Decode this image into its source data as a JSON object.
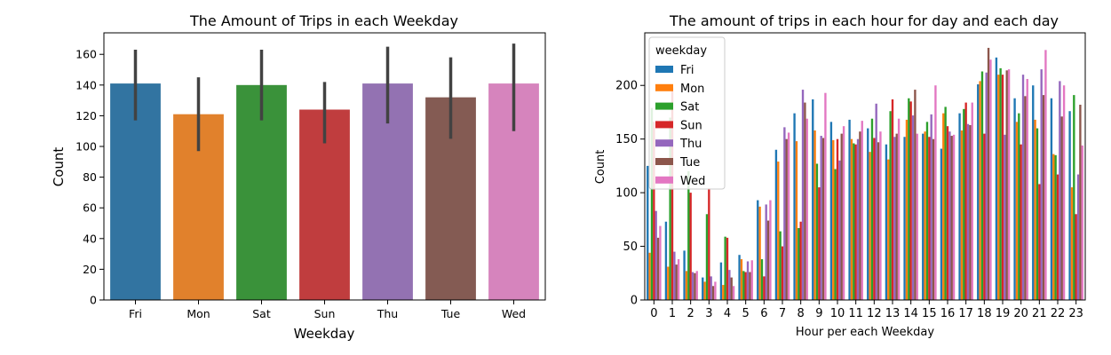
{
  "chart_data": [
    {
      "type": "bar",
      "title": "The Amount of Trips in each Weekday",
      "xlabel": "Weekday",
      "ylabel": "Count",
      "ylim": [
        0,
        174
      ],
      "yticks": [
        0,
        20,
        40,
        60,
        80,
        100,
        120,
        140,
        160
      ],
      "categories": [
        "Fri",
        "Mon",
        "Sat",
        "Sun",
        "Thu",
        "Tue",
        "Wed"
      ],
      "values": [
        141,
        121,
        140,
        124,
        141,
        132,
        141
      ],
      "error_low": [
        117,
        97,
        117,
        102,
        115,
        105,
        110
      ],
      "error_high": [
        163,
        145,
        163,
        142,
        165,
        158,
        167
      ],
      "colors": [
        "#3274a1",
        "#e1812c",
        "#3a923a",
        "#c03d3e",
        "#9372b2",
        "#845b53",
        "#d684bd"
      ],
      "error_color": "#424242"
    },
    {
      "type": "bar",
      "title": "The amount of trips in each hour for day and each day",
      "xlabel": "Hour per each Weekday",
      "ylabel": "Count",
      "ylim": [
        0,
        249
      ],
      "yticks": [
        0,
        50,
        100,
        150,
        200
      ],
      "categories": [
        "0",
        "1",
        "2",
        "3",
        "4",
        "5",
        "6",
        "7",
        "8",
        "9",
        "10",
        "11",
        "12",
        "13",
        "14",
        "15",
        "16",
        "17",
        "18",
        "19",
        "20",
        "21",
        "22",
        "23"
      ],
      "legend": {
        "title": "weekday",
        "placement": "top-left"
      },
      "series": [
        {
          "name": "Fri",
          "color": "#1f77b4",
          "values": [
            125,
            73,
            46,
            21,
            35,
            42,
            93,
            140,
            174,
            187,
            166,
            168,
            160,
            145,
            152,
            155,
            141,
            174,
            201,
            226,
            188,
            200,
            188,
            176
          ]
        },
        {
          "name": "Mon",
          "color": "#ff7f0e",
          "values": [
            44,
            31,
            27,
            17,
            14,
            38,
            87,
            129,
            148,
            158,
            149,
            150,
            138,
            131,
            168,
            157,
            174,
            158,
            204,
            210,
            166,
            168,
            136,
            105
          ]
        },
        {
          "name": "Sat",
          "color": "#2ca02c",
          "values": [
            179,
            170,
            120,
            80,
            59,
            27,
            38,
            64,
            67,
            127,
            122,
            146,
            169,
            176,
            188,
            166,
            180,
            178,
            213,
            216,
            174,
            160,
            135,
            191
          ]
        },
        {
          "name": "Sun",
          "color": "#d62728",
          "values": [
            166,
            198,
            100,
            104,
            58,
            26,
            22,
            50,
            73,
            105,
            150,
            145,
            151,
            187,
            185,
            152,
            162,
            184,
            155,
            210,
            145,
            108,
            117,
            80
          ]
        },
        {
          "name": "Thu",
          "color": "#9467bd",
          "values": [
            83,
            45,
            26,
            22,
            28,
            36,
            89,
            161,
            196,
            153,
            130,
            150,
            183,
            152,
            172,
            173,
            157,
            164,
            212,
            154,
            210,
            215,
            204,
            117
          ]
        },
        {
          "name": "Tue",
          "color": "#8c564b",
          "values": [
            58,
            33,
            25,
            13,
            21,
            26,
            74,
            150,
            184,
            151,
            155,
            157,
            147,
            155,
            196,
            150,
            153,
            163,
            235,
            214,
            190,
            191,
            171,
            182
          ]
        },
        {
          "name": "Wed",
          "color": "#e377c2",
          "values": [
            69,
            38,
            27,
            17,
            13,
            37,
            93,
            156,
            169,
            193,
            162,
            167,
            157,
            169,
            155,
            200,
            154,
            184,
            224,
            215,
            206,
            233,
            200,
            144
          ]
        }
      ]
    }
  ]
}
